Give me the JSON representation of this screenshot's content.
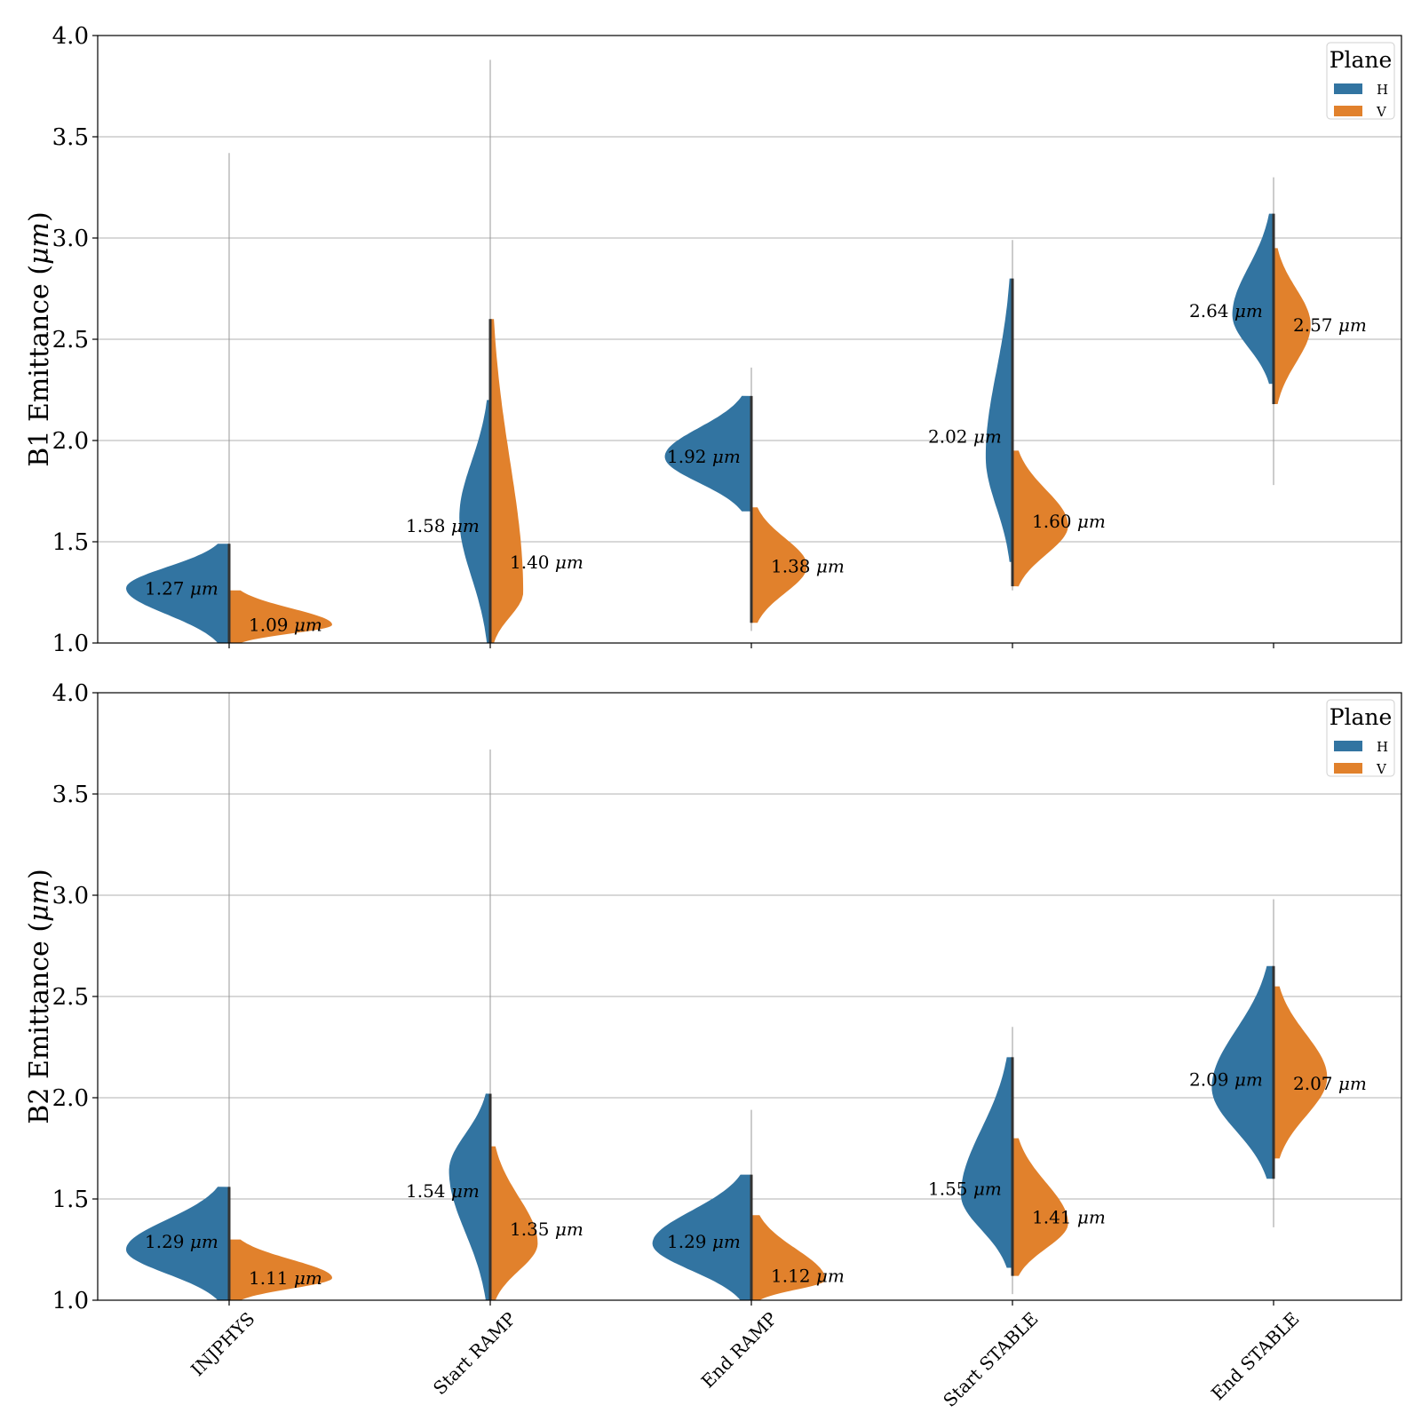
{
  "colors": {
    "H": "#3274a1",
    "V": "#e1812c",
    "grid": "#b0b0b0",
    "spine": "#333333"
  },
  "chart_data": [
    {
      "type": "violin",
      "split": true,
      "ylabel_main": "B1 Emittance (",
      "ylabel_unit": "μm",
      "ylabel_close": ")",
      "ylim": [
        1.0,
        4.0
      ],
      "yticks": [
        "1.0",
        "1.5",
        "2.0",
        "2.5",
        "3.0",
        "3.5",
        "4.0"
      ],
      "grid": true,
      "categories": [
        "INJPHYS",
        "Start RAMP",
        "End RAMP",
        "Start STABLE",
        "End STABLE"
      ],
      "legend": {
        "title": "Plane",
        "position": "top-right",
        "entries": [
          "H",
          "V"
        ]
      },
      "series": [
        {
          "name": "H",
          "medians": [
            1.27,
            1.58,
            1.92,
            2.02,
            2.64
          ],
          "labels": [
            "1.27",
            "1.58",
            "1.92",
            "2.02",
            "2.64"
          ],
          "ranges": [
            [
              1.0,
              3.42
            ],
            [
              1.0,
              3.88
            ],
            [
              1.06,
              2.36
            ],
            [
              1.26,
              2.99
            ],
            [
              1.78,
              3.3
            ]
          ],
          "body": [
            [
              1.0,
              1.49
            ],
            [
              1.0,
              2.2
            ],
            [
              1.65,
              2.22
            ],
            [
              1.4,
              2.8
            ],
            [
              2.28,
              3.12
            ]
          ],
          "peaks": [
            [
              1.27,
              0.5
            ],
            [
              1.62,
              0.15
            ],
            [
              1.92,
              0.42
            ],
            [
              1.92,
              0.13
            ],
            [
              2.62,
              0.2
            ]
          ]
        },
        {
          "name": "V",
          "medians": [
            1.09,
            1.4,
            1.38,
            1.6,
            2.57
          ],
          "labels": [
            "1.09",
            "1.40",
            "1.38",
            "1.60",
            "2.57"
          ],
          "ranges": [
            [
              1.0,
              2.42
            ],
            [
              1.0,
              3.75
            ],
            [
              1.06,
              1.97
            ],
            [
              1.3,
              2.0
            ],
            [
              1.95,
              2.95
            ]
          ],
          "body": [
            [
              1.0,
              1.26
            ],
            [
              1.0,
              2.6
            ],
            [
              1.1,
              1.67
            ],
            [
              1.28,
              1.95
            ],
            [
              2.18,
              2.95
            ]
          ],
          "peaks": [
            [
              1.09,
              0.5
            ],
            [
              1.25,
              0.16
            ],
            [
              1.38,
              0.27
            ],
            [
              1.58,
              0.27
            ],
            [
              2.57,
              0.18
            ]
          ]
        }
      ]
    },
    {
      "type": "violin",
      "split": true,
      "ylabel_main": "B2 Emittance (",
      "ylabel_unit": "μm",
      "ylabel_close": ")",
      "ylim": [
        1.0,
        4.0
      ],
      "yticks": [
        "1.0",
        "1.5",
        "2.0",
        "2.5",
        "3.0",
        "3.5",
        "4.0"
      ],
      "grid": true,
      "categories": [
        "INJPHYS",
        "Start RAMP",
        "End RAMP",
        "Start STABLE",
        "End STABLE"
      ],
      "legend": {
        "title": "Plane",
        "position": "top-right",
        "entries": [
          "H",
          "V"
        ]
      },
      "series": [
        {
          "name": "H",
          "medians": [
            1.29,
            1.54,
            1.29,
            1.55,
            2.09
          ],
          "labels": [
            "1.29",
            "1.54",
            "1.29",
            "1.55",
            "2.09"
          ],
          "ranges": [
            [
              1.0,
              4.0
            ],
            [
              1.0,
              2.45
            ],
            [
              1.0,
              1.94
            ],
            [
              1.03,
              2.35
            ],
            [
              1.36,
              2.98
            ]
          ],
          "body": [
            [
              1.0,
              1.56
            ],
            [
              1.0,
              2.02
            ],
            [
              1.0,
              1.62
            ],
            [
              1.16,
              2.2
            ],
            [
              1.6,
              2.65
            ]
          ],
          "peaks": [
            [
              1.25,
              0.5
            ],
            [
              1.64,
              0.2
            ],
            [
              1.28,
              0.48
            ],
            [
              1.52,
              0.25
            ],
            [
              2.05,
              0.3
            ]
          ]
        },
        {
          "name": "V",
          "medians": [
            1.11,
            1.35,
            1.12,
            1.41,
            2.07
          ],
          "labels": [
            "1.11",
            "1.35",
            "1.12",
            "1.41",
            "2.07"
          ],
          "ranges": [
            [
              1.0,
              1.9
            ],
            [
              1.0,
              3.72
            ],
            [
              1.0,
              1.8
            ],
            [
              1.06,
              1.97
            ],
            [
              1.58,
              2.85
            ]
          ],
          "body": [
            [
              1.0,
              1.3
            ],
            [
              1.0,
              1.76
            ],
            [
              1.0,
              1.42
            ],
            [
              1.12,
              1.8
            ],
            [
              1.7,
              2.55
            ]
          ],
          "peaks": [
            [
              1.11,
              0.5
            ],
            [
              1.28,
              0.23
            ],
            [
              1.1,
              0.36
            ],
            [
              1.38,
              0.27
            ],
            [
              2.1,
              0.26
            ]
          ]
        }
      ]
    }
  ]
}
